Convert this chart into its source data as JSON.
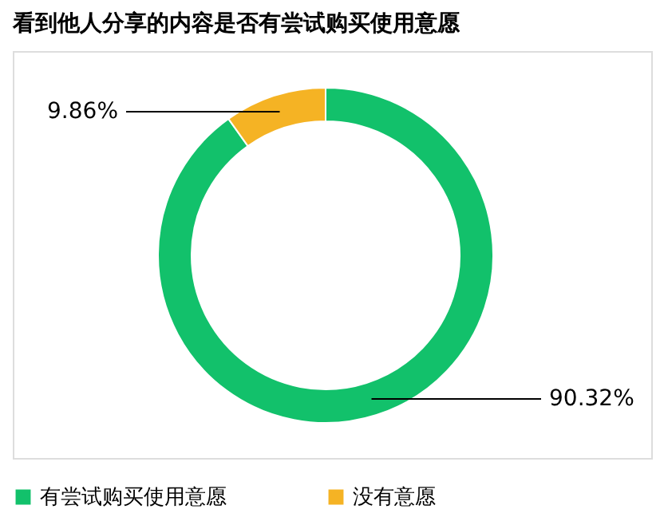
{
  "chart_data": {
    "type": "donut",
    "title": "看到他人分享的内容是否有尝试购买使用意愿",
    "categories": [
      "有尝试购买使用意愿",
      "没有意愿"
    ],
    "values": [
      90.32,
      9.86
    ],
    "colors": [
      "#12c16b",
      "#f5b324"
    ],
    "value_labels": [
      "90.32%",
      "9.86%"
    ],
    "legend": "bottom"
  }
}
